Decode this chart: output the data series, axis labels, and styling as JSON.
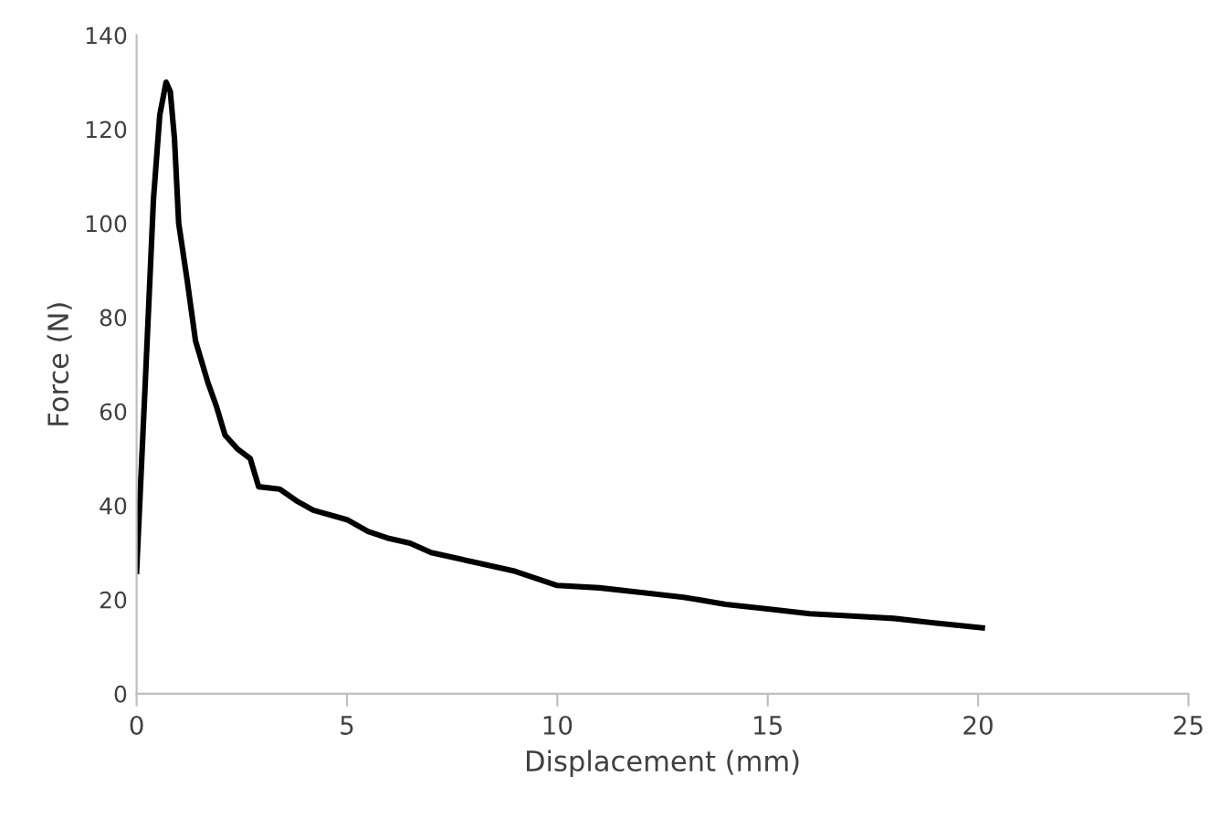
{
  "chart_data": {
    "type": "line",
    "xlabel": "Displacement (mm)",
    "ylabel": "Force (N)",
    "xlim": [
      0,
      25
    ],
    "xticks": [
      0,
      5,
      10,
      15,
      20,
      25
    ],
    "ylim": [
      0,
      140
    ],
    "yticks": [
      0,
      20,
      40,
      60,
      80,
      100,
      120,
      140
    ],
    "grid": false,
    "legend": false,
    "marker": "none",
    "line_style": "solid",
    "series": [
      {
        "color": "#000000",
        "x": [
          0,
          0.2,
          0.4,
          0.55,
          0.7,
          0.8,
          0.9,
          1.0,
          1.2,
          1.4,
          1.7,
          1.9,
          2.1,
          2.4,
          2.7,
          2.9,
          3.4,
          3.8,
          4.2,
          5.0,
          5.5,
          6.0,
          6.5,
          7.0,
          8.0,
          9.0,
          10.0,
          11,
          12,
          13,
          14,
          15,
          16,
          17,
          18,
          19,
          20.1
        ],
        "values": [
          26,
          65,
          105,
          123,
          130,
          128,
          118,
          100,
          88,
          75,
          66,
          61,
          55,
          52,
          50,
          44,
          43.5,
          41,
          39,
          37,
          34.5,
          33,
          32,
          30,
          28,
          26,
          23,
          22.5,
          21.5,
          20.5,
          19,
          18,
          17,
          16.5,
          16,
          15,
          14
        ]
      }
    ]
  }
}
